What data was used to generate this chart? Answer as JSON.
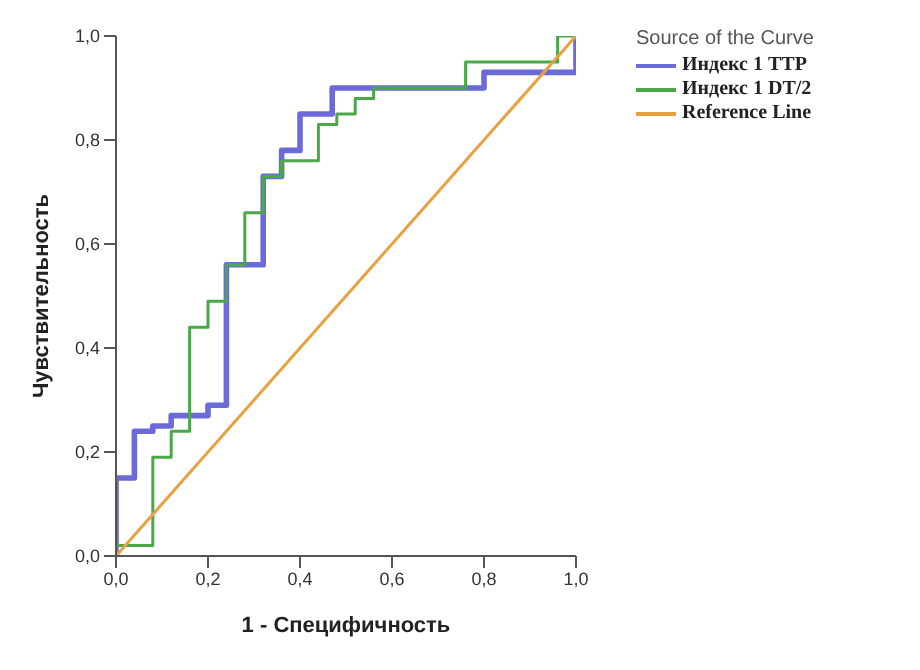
{
  "chart_data": {
    "type": "step",
    "xlabel": "1 - Специфичность",
    "ylabel": "Чувствительность",
    "legend_title": "Source of the Curve",
    "legend": "top right",
    "grid": false,
    "marker": "none",
    "xlim": [
      0,
      1
    ],
    "ylim": [
      0,
      1
    ],
    "xticks": [
      {
        "value": 0,
        "label": "0,0"
      },
      {
        "value": 0.2,
        "label": "0,2"
      },
      {
        "value": 0.4,
        "label": "0,4"
      },
      {
        "value": 0.6,
        "label": "0,6"
      },
      {
        "value": 0.8,
        "label": "0,8"
      },
      {
        "value": 1,
        "label": "1,0"
      }
    ],
    "yticks": [
      {
        "value": 0,
        "label": "0,0"
      },
      {
        "value": 0.2,
        "label": "0,2"
      },
      {
        "value": 0.4,
        "label": "0,4"
      },
      {
        "value": 0.6,
        "label": "0,6"
      },
      {
        "value": 0.8,
        "label": "0,8"
      },
      {
        "value": 1,
        "label": "1,0"
      }
    ],
    "series": [
      {
        "name": "Индекс 1 TTP",
        "color": "#6a6ad8",
        "x": [
          0,
          0,
          0.04,
          0.08,
          0.12,
          0.2,
          0.24,
          0.32,
          0.36,
          0.4,
          0.47,
          0.8,
          1,
          1
        ],
        "values": [
          0,
          0.15,
          0.24,
          0.25,
          0.27,
          0.29,
          0.56,
          0.73,
          0.78,
          0.85,
          0.9,
          0.93,
          0.93,
          1
        ]
      },
      {
        "name": "Индекс 1 DT/2",
        "color": "#4aa84a",
        "x": [
          0,
          0,
          0.08,
          0.12,
          0.16,
          0.2,
          0.24,
          0.28,
          0.32,
          0.36,
          0.44,
          0.48,
          0.52,
          0.56,
          0.76,
          0.96,
          1
        ],
        "values": [
          0,
          0.02,
          0.19,
          0.24,
          0.44,
          0.49,
          0.56,
          0.66,
          0.73,
          0.76,
          0.83,
          0.85,
          0.88,
          0.9,
          0.95,
          1,
          1
        ]
      },
      {
        "name": "Reference Line",
        "type": "line",
        "color": "#e8a040",
        "x": [
          0,
          1
        ],
        "values": [
          0,
          1
        ]
      }
    ]
  }
}
